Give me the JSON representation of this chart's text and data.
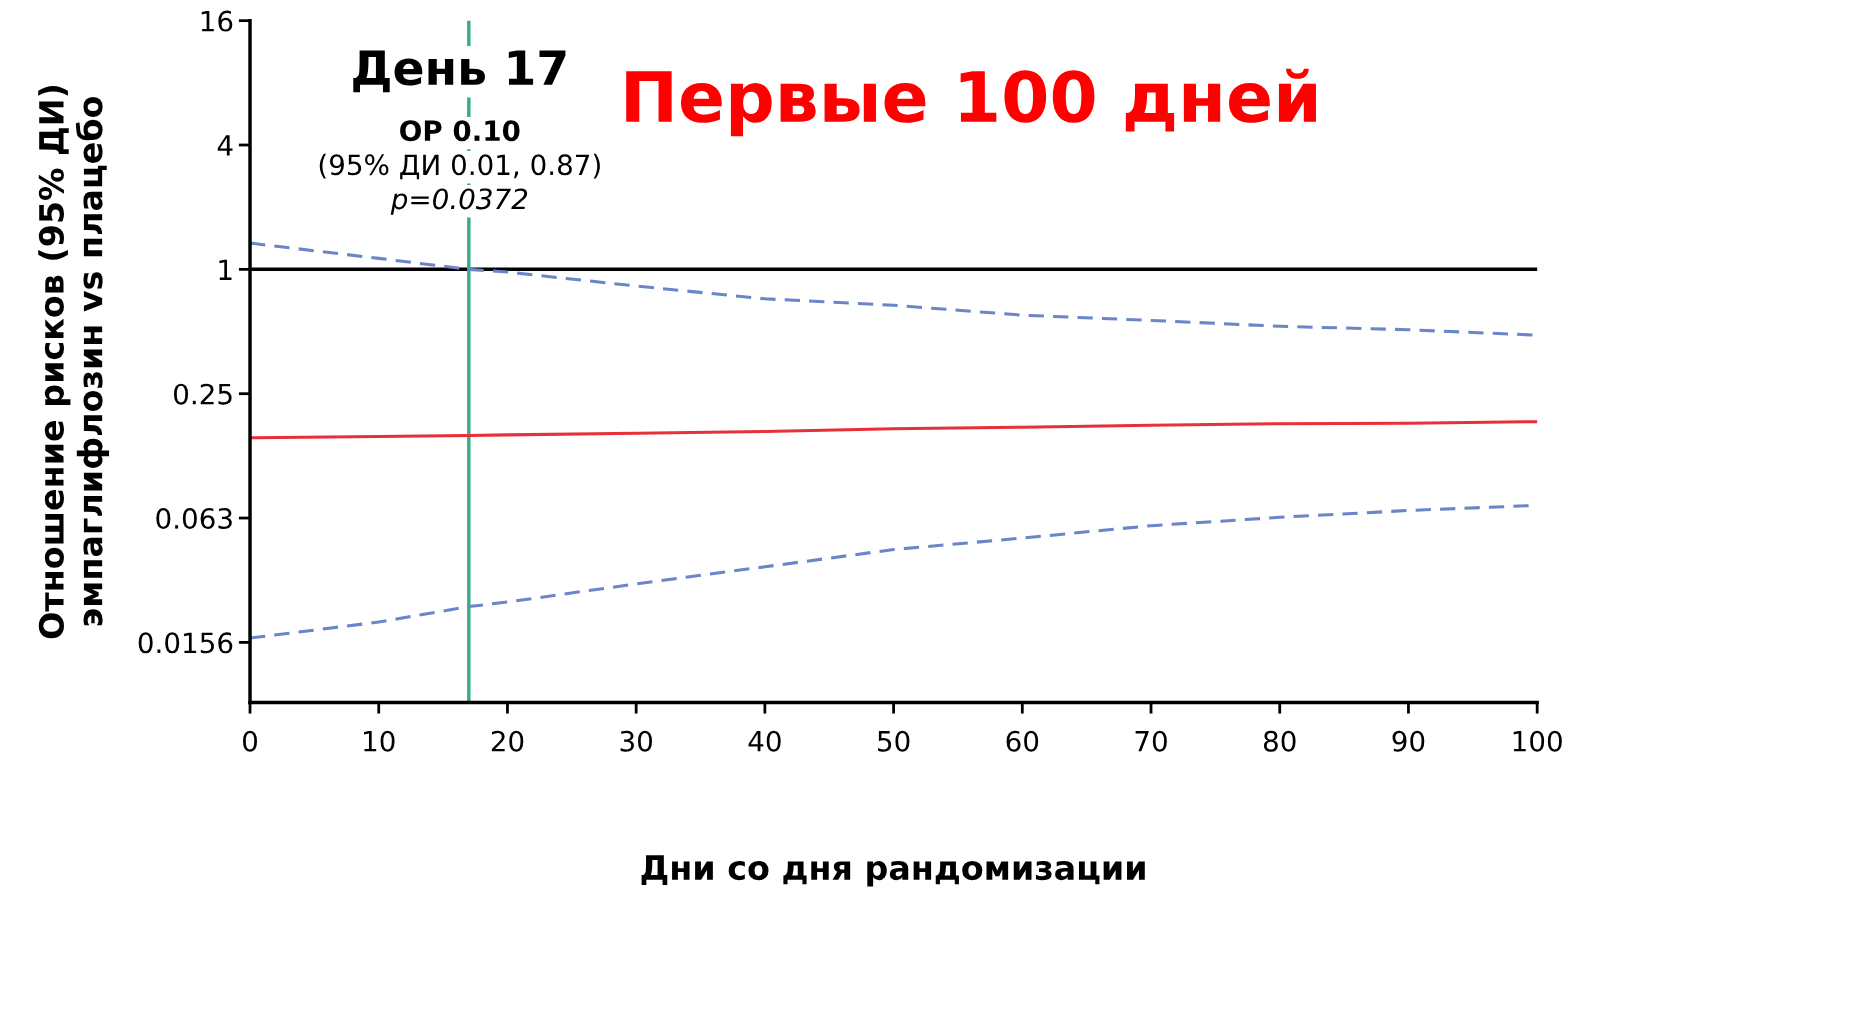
{
  "chart_data": {
    "type": "line",
    "title": "Первые 100 дней",
    "xlabel": "Дни со дня рандомизации",
    "ylabel": "Отношение рисков (95% ДИ)\nэмпаглифлозин vs плацебо",
    "x": [
      0,
      10,
      17,
      20,
      30,
      40,
      50,
      60,
      70,
      80,
      90,
      100
    ],
    "series": [
      {
        "color": "#6a85c8",
        "line_style": "dashed",
        "values": [
          1.34,
          1.13,
          1.0,
          0.97,
          0.83,
          0.72,
          0.67,
          0.6,
          0.566,
          0.53,
          0.51,
          0.48
        ]
      },
      {
        "color": "#e8303a",
        "line_style": "solid",
        "values": [
          0.153,
          0.155,
          0.157,
          0.158,
          0.161,
          0.164,
          0.169,
          0.172,
          0.176,
          0.179,
          0.18,
          0.183
        ]
      },
      {
        "color": "#6a85c8",
        "line_style": "dashed",
        "values": [
          0.0164,
          0.0196,
          0.0233,
          0.0245,
          0.03,
          0.0363,
          0.044,
          0.05,
          0.0574,
          0.063,
          0.068,
          0.072
        ]
      }
    ],
    "annotations": [
      "День 17",
      "ОР 0.10",
      "(95% ДИ 0.01, 0.87)",
      "p=0.0372"
    ],
    "ref_lines": [
      {
        "axis": "y",
        "value": 1,
        "color": "#000000"
      },
      {
        "axis": "x",
        "value": 17,
        "color": "#3aaa8c"
      }
    ],
    "log": "y",
    "xlim": [
      0,
      100
    ],
    "xticks": [
      0,
      10,
      20,
      30,
      40,
      50,
      60,
      70,
      80,
      90,
      100
    ],
    "ylim": [
      0.008,
      16
    ],
    "yticks": [
      16,
      4,
      1,
      0.25,
      {
        "value": 0.0625,
        "label": "0.063"
      },
      {
        "value": 0.015625,
        "label": "0.0156"
      }
    ],
    "grid": false
  }
}
